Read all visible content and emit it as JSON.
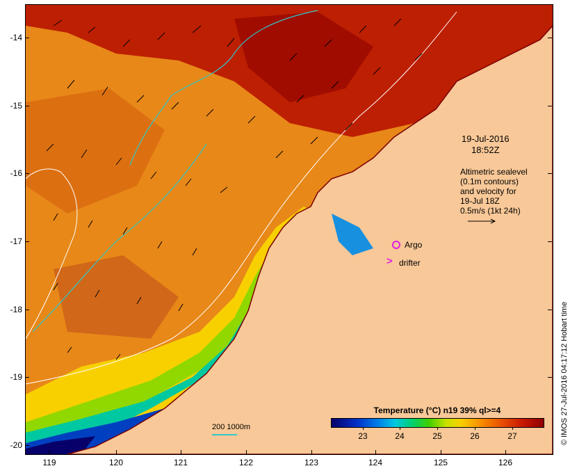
{
  "map": {
    "y_ticks": [
      "-14",
      "-15",
      "-16",
      "-17",
      "-18",
      "-19",
      "-20"
    ],
    "x_ticks": [
      "119",
      "120",
      "121",
      "122",
      "123",
      "124",
      "125",
      "126"
    ],
    "date_line1": "19-Jul-2016",
    "date_line2": "18:52Z",
    "altimetry": {
      "line1": "Altimetric sealevel",
      "line2": "(0.1m contours)",
      "line3": "and velocity for",
      "line4": "19-Jul 18Z",
      "line5": "0.5m/s (1kt 24h)"
    },
    "argo_label": "Argo",
    "drifter_label": "drifter",
    "contour_legend": "200  1000m",
    "colorbar": {
      "title": "Temperature (°C) n19 39% ql>=4",
      "ticks": [
        "23",
        "24",
        "25",
        "26",
        "27"
      ]
    },
    "credit": "© IMOS 27-Jul-2016 04:17:12 Hobart time",
    "colors": {
      "land": "#f8c898",
      "warm": "#e07010",
      "hot": "#b01000",
      "contour_200": "#30c8c8",
      "contour_1000": "#ffffff",
      "marker": "#e020e0"
    }
  }
}
